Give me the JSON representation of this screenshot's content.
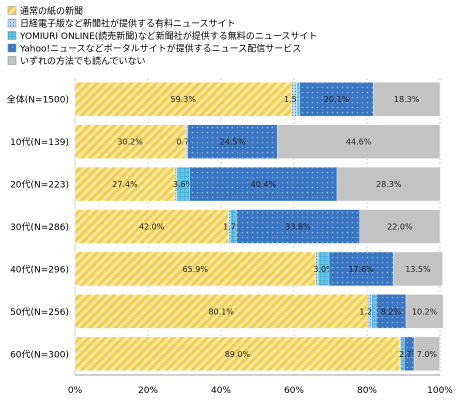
{
  "chart_data": {
    "type": "bar",
    "orientation": "horizontal",
    "stacked": true,
    "title": "",
    "xlabel": "",
    "ylabel": "",
    "xlim": [
      0,
      100
    ],
    "x_ticks": [
      "0%",
      "20%",
      "40%",
      "60%",
      "80%",
      "100%"
    ],
    "grid": true,
    "legend_position": "top-left",
    "categories": [
      "全体(N=1500)",
      "10代(N=139)",
      "20代(N=223)",
      "30代(N=286)",
      "40代(N=296)",
      "50代(N=256)",
      "60代(N=300)"
    ],
    "series": [
      {
        "name": "通常の紙の新聞",
        "color": "#f5d76e",
        "pattern": "diagonal-hatch",
        "values": [
          59.3,
          30.2,
          27.4,
          42.0,
          65.9,
          80.1,
          89.0
        ],
        "labels": [
          "59.3%",
          "30.2%",
          "27.4%",
          "42.0%",
          "65.9%",
          "80.1%",
          "89.0%"
        ]
      },
      {
        "name": "日経電子版など新聞社が提供する有料ニュースサイト",
        "color": "#9fc7e4",
        "pattern": "dense-dots",
        "values": [
          1.5,
          0.7,
          0.4,
          0.5,
          0.7,
          1.2,
          0.2
        ],
        "labels": [
          "1.5%",
          "0.7%",
          "",
          "",
          "",
          "1.2%",
          ""
        ]
      },
      {
        "name": "YOMIURI ONLINE(読売新聞)など新聞社が提供する無料のニュースサイト",
        "color": "#43b4d9",
        "pattern": "grid",
        "values": [
          0.8,
          0.0,
          3.6,
          1.7,
          3.0,
          1.2,
          1.0
        ],
        "labels": [
          "",
          "",
          "3.6%",
          "1.7%",
          "3.0%",
          "",
          ""
        ]
      },
      {
        "name": "Yahoo!ニュースなどポータルサイトが提供するニュース配信サービス",
        "color": "#3d79c4",
        "pattern": "dots",
        "values": [
          20.1,
          24.5,
          40.4,
          33.8,
          17.6,
          8.2,
          2.7
        ],
        "labels": [
          "20.1%",
          "24.5%",
          "40.4%",
          "33.8%",
          "17.6%",
          "8.2%",
          "2.7%"
        ]
      },
      {
        "name": "いずれの方法でも読んでいない",
        "color": "#c3c3c3",
        "pattern": "solid",
        "values": [
          18.3,
          44.6,
          28.3,
          22.0,
          13.5,
          10.2,
          7.0
        ],
        "labels": [
          "18.3%",
          "44.6%",
          "28.3%",
          "22.0%",
          "13.5%",
          "10.2%",
          "7.0%"
        ]
      }
    ]
  }
}
